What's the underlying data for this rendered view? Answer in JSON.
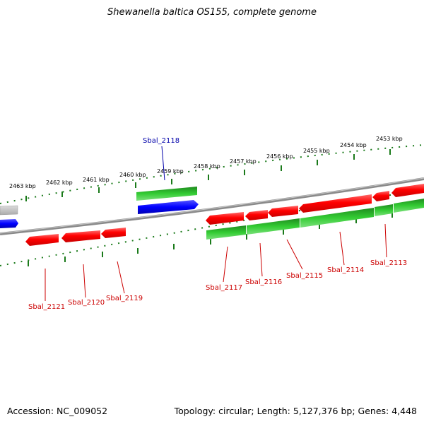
{
  "title": "Shewanella baltica OS155, complete genome",
  "footer": {
    "accession": "Accession: NC_009052",
    "stats": "Topology: circular; Length: 5,127,376 bp; Genes: 4,448"
  },
  "colors": {
    "forward_gene": "#ff0000",
    "reverse_gene": "#2db82d",
    "highlight": "#0000ff",
    "label_red": "#cc0000",
    "label_blue": "#0000aa",
    "backbone": "#888888",
    "ticks": "#1a7a1a"
  },
  "kbp_ticks": [
    "2463 kbp",
    "2462 kbp",
    "2461 kbp",
    "2460 kbp",
    "2459 kbp",
    "2458 kbp",
    "2457 kbp",
    "2456 kbp",
    "2455 kbp",
    "2454 kbp",
    "2453 kbp"
  ],
  "gene_labels": [
    "Sbal_2118",
    "Sbal_2121",
    "Sbal_2120",
    "Sbal_2119",
    "Sbal_2117",
    "Sbal_2116",
    "Sbal_2115",
    "Sbal_2114",
    "Sbal_2113"
  ]
}
